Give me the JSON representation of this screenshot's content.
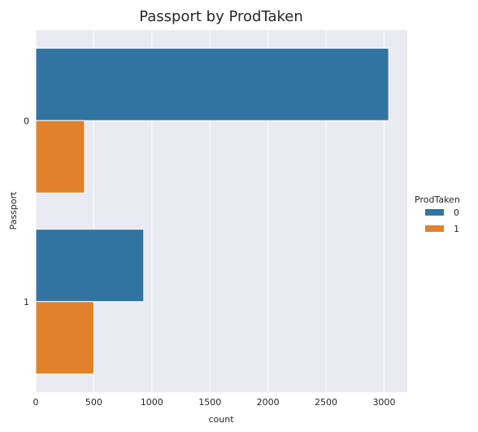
{
  "chart_data": {
    "type": "bar",
    "orientation": "horizontal",
    "title": "Passport by ProdTaken",
    "xlabel": "count",
    "ylabel": "Passport",
    "categories": [
      "0",
      "1"
    ],
    "series": [
      {
        "name": "0",
        "values": [
          3040,
          930
        ],
        "color": "#3274a1"
      },
      {
        "name": "1",
        "values": [
          420,
          500
        ],
        "color": "#e1812c"
      }
    ],
    "xlim": [
      0,
      3200
    ],
    "xticks": [
      0,
      500,
      1000,
      1500,
      2000,
      2500,
      3000
    ],
    "legend": {
      "title": "ProdTaken",
      "placement": "right"
    },
    "grid": true,
    "background": "#eaeaf2"
  }
}
